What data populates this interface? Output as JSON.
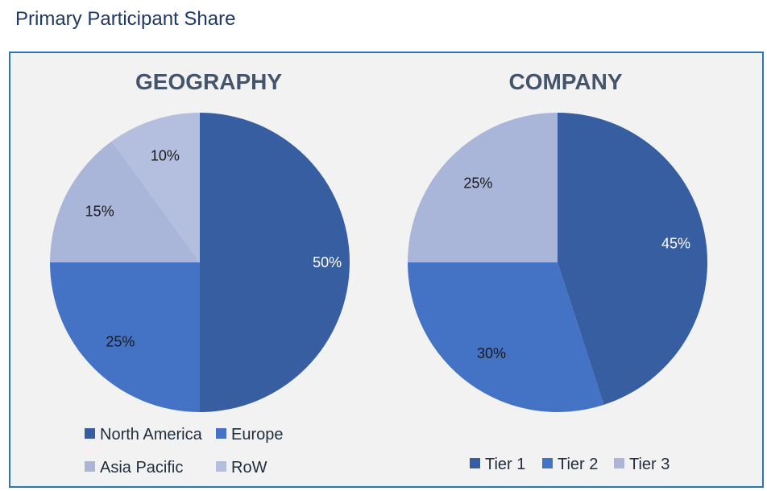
{
  "page_title": "Primary Participant Share",
  "colors": {
    "series_dark": "#365ea1",
    "series_mid": "#4472c4",
    "series_light": "#a9b5d9",
    "series_lighter": "#b4bfe0"
  },
  "chart_data": [
    {
      "type": "pie",
      "title": "GEOGRAPHY",
      "categories": [
        "North America",
        "Europe",
        "Asia Pacific",
        "RoW"
      ],
      "values": [
        50,
        25,
        15,
        10
      ],
      "labels": [
        "50%",
        "25%",
        "15%",
        "10%"
      ],
      "colors": [
        "#365ea1",
        "#4472c4",
        "#a9b5d9",
        "#b4bfe0"
      ],
      "legend_position": "bottom"
    },
    {
      "type": "pie",
      "title": "COMPANY",
      "categories": [
        "Tier 1",
        "Tier 2",
        "Tier 3"
      ],
      "values": [
        45,
        30,
        25
      ],
      "labels": [
        "45%",
        "30%",
        "25%"
      ],
      "colors": [
        "#365ea1",
        "#4472c4",
        "#a9b5d9"
      ],
      "legend_position": "bottom"
    }
  ]
}
